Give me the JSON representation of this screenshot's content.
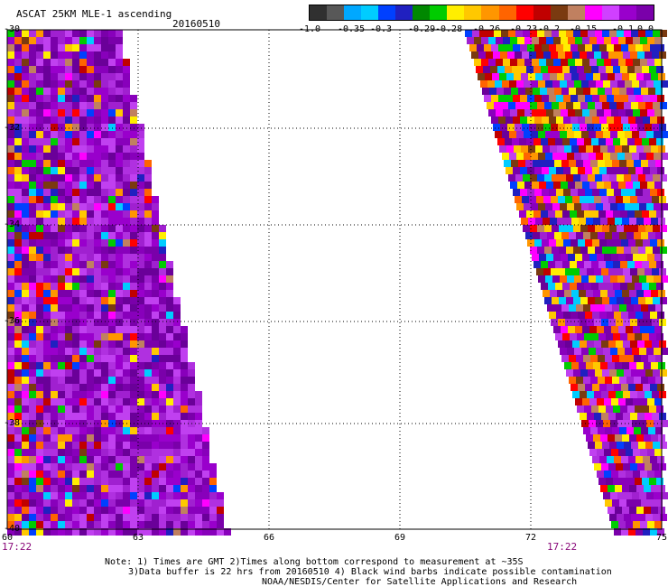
{
  "header": {
    "title": "ASCAT 25KM MLE-1 ascending",
    "date": "20160510"
  },
  "colorbar": {
    "colors": [
      "#303030",
      "#585858",
      "#00a8ff",
      "#00ccff",
      "#0040ff",
      "#2020c0",
      "#008800",
      "#00cc00",
      "#ffee00",
      "#ffc800",
      "#ff9600",
      "#ff6400",
      "#ff0000",
      "#c00000",
      "#7a3a10",
      "#c08060",
      "#ff00ff",
      "#d040ff",
      "#9900cc",
      "#7a00aa"
    ],
    "tick_labels": [
      "-1.0",
      "-0.35",
      "-0.3",
      "-0.29",
      "-0.28",
      "-0.26",
      "-0.23",
      "-0.2",
      "-0.15",
      "-0.1",
      "0.0"
    ]
  },
  "axes": {
    "x_ticks": [
      "60",
      "63",
      "66",
      "69",
      "72",
      "75"
    ],
    "y_ticks": [
      "-30",
      "-32",
      "-34",
      "-36",
      "-38",
      "-40"
    ],
    "time_left": "17:22",
    "time_right": "17:22"
  },
  "notes": {
    "line1": "Note: 1) Times are GMT 2)Times along bottom correspond to measurement at ~35S",
    "line2": "3)Data buffer is 22 hrs from 20160510 4) Black wind barbs indicate possible contamination",
    "line3": "NOAA/NESDIS/Center for Satellite Applications and Research"
  }
}
